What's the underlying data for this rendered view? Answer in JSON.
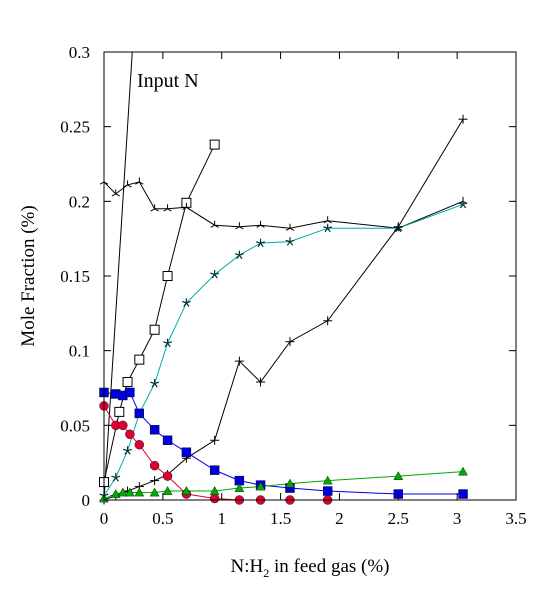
{
  "chart_data": {
    "type": "line",
    "xlabel_parts": [
      "N:H",
      "2",
      " in feed gas (%)"
    ],
    "ylabel": "Mole Fraction (%)",
    "xlim": [
      0,
      3.5
    ],
    "ylim": [
      0,
      0.3
    ],
    "xticks": [
      "0",
      "0.5",
      "1",
      "1.5",
      "2",
      "2.5",
      "3",
      "3.5"
    ],
    "yticks": [
      "0",
      "0.05",
      "0.1",
      "0.15",
      "0.2",
      "0.25",
      "0.3"
    ],
    "grid": false,
    "legend": "none",
    "annotations": [
      {
        "text": "Input N",
        "x": 0.15,
        "y": 0.282
      }
    ],
    "series": [
      {
        "marker": "none",
        "color": "#000000",
        "x": [
          0,
          0.24
        ],
        "y": [
          0,
          0.3
        ]
      },
      {
        "marker": "open-square",
        "color": "#000000",
        "x": [
          0,
          0.13,
          0.2,
          0.3,
          0.43,
          0.54,
          0.7,
          0.94
        ],
        "y": [
          0.012,
          0.059,
          0.079,
          0.094,
          0.114,
          0.15,
          0.199,
          0.238
        ]
      },
      {
        "marker": "tri-star",
        "color": "#000000",
        "x": [
          0,
          0.1,
          0.2,
          0.3,
          0.43,
          0.54,
          0.7,
          0.94,
          1.15,
          1.33,
          1.58,
          1.9,
          2.5,
          3.05
        ],
        "y": [
          0.213,
          0.205,
          0.211,
          0.213,
          0.195,
          0.195,
          0.196,
          0.184,
          0.183,
          0.184,
          0.182,
          0.187,
          0.182,
          0.2
        ]
      },
      {
        "marker": "star",
        "color": "#00aaaa",
        "x": [
          0,
          0.1,
          0.2,
          0.3,
          0.43,
          0.54,
          0.7,
          0.94,
          1.15,
          1.33,
          1.58,
          1.9,
          2.5,
          3.05
        ],
        "y": [
          0.003,
          0.015,
          0.033,
          0.058,
          0.078,
          0.105,
          0.132,
          0.151,
          0.164,
          0.172,
          0.173,
          0.182,
          0.182,
          0.198
        ]
      },
      {
        "marker": "plus",
        "color": "#000000",
        "x": [
          0,
          0.1,
          0.2,
          0.3,
          0.43,
          0.54,
          0.7,
          0.94,
          1.15,
          1.33,
          1.58,
          1.9,
          2.5,
          3.05
        ],
        "y": [
          0,
          0.003,
          0.006,
          0.009,
          0.013,
          0.017,
          0.028,
          0.04,
          0.093,
          0.079,
          0.106,
          0.12,
          0.183,
          0.255
        ]
      },
      {
        "marker": "filled-square",
        "color": "#0000dd",
        "x": [
          0,
          0.1,
          0.16,
          0.22,
          0.3,
          0.43,
          0.54,
          0.7,
          0.94,
          1.15,
          1.33,
          1.58,
          1.9,
          2.5,
          3.05
        ],
        "y": [
          0.072,
          0.071,
          0.07,
          0.072,
          0.058,
          0.047,
          0.04,
          0.032,
          0.02,
          0.013,
          0.01,
          0.008,
          0.006,
          0.004,
          0.004
        ]
      },
      {
        "marker": "filled-circle",
        "color": "#dd0033",
        "x": [
          0,
          0.1,
          0.16,
          0.22,
          0.3,
          0.43,
          0.54,
          0.7,
          0.94,
          1.15,
          1.33,
          1.58,
          1.9
        ],
        "y": [
          0.063,
          0.05,
          0.05,
          0.044,
          0.037,
          0.023,
          0.016,
          0.004,
          0.001,
          0,
          0,
          0,
          0
        ]
      },
      {
        "marker": "filled-triangle",
        "color": "#00aa00",
        "x": [
          0,
          0.1,
          0.16,
          0.22,
          0.3,
          0.43,
          0.54,
          0.7,
          0.94,
          1.15,
          1.33,
          1.58,
          1.9,
          2.5,
          3.05
        ],
        "y": [
          0.001,
          0.004,
          0.005,
          0.005,
          0.005,
          0.005,
          0.006,
          0.006,
          0.006,
          0.008,
          0.009,
          0.011,
          0.013,
          0.016,
          0.019
        ]
      }
    ]
  }
}
